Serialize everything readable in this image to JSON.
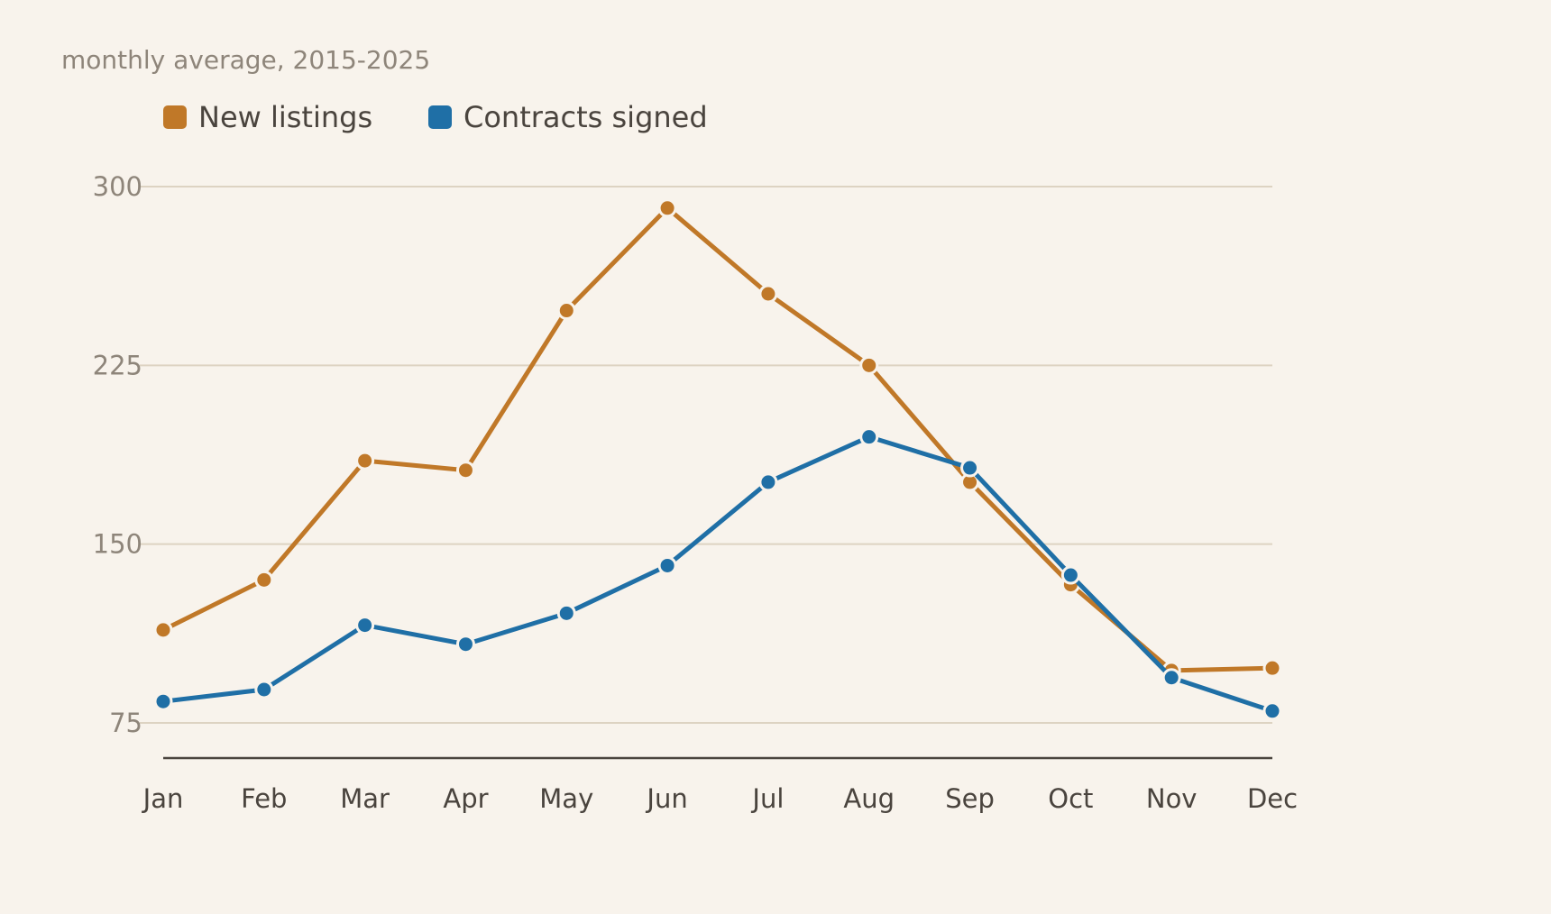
{
  "chart_data": {
    "type": "line",
    "subtitle": "monthly average, 2015-2025",
    "categories": [
      "Jan",
      "Feb",
      "Mar",
      "Apr",
      "May",
      "Jun",
      "Jul",
      "Aug",
      "Sep",
      "Oct",
      "Nov",
      "Dec"
    ],
    "series": [
      {
        "name": "New listings",
        "color": "#c07828",
        "values": [
          114,
          135,
          185,
          181,
          248,
          291,
          255,
          225,
          176,
          133,
          97,
          98
        ]
      },
      {
        "name": "Contracts signed",
        "color": "#1f6fa6",
        "values": [
          84,
          89,
          116,
          108,
          121,
          141,
          176,
          195,
          182,
          137,
          94,
          80
        ]
      }
    ],
    "ylim": [
      60,
      300
    ],
    "yticks": [
      75,
      150,
      225,
      300
    ],
    "grid": true,
    "legend_position": "top-left"
  }
}
